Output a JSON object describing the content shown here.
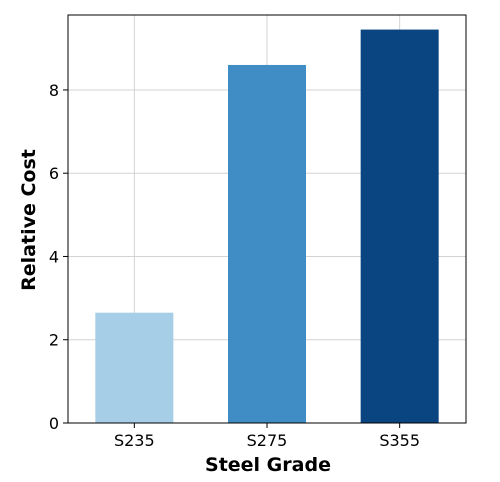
{
  "chart_data": {
    "type": "bar",
    "title": "",
    "xlabel": "Steel Grade",
    "ylabel": "Relative Cost",
    "categories": [
      "S235",
      "S275",
      "S355"
    ],
    "values": [
      2.65,
      8.6,
      9.45
    ],
    "colors": [
      "#a6cee6",
      "#3f8dc4",
      "#0a4582"
    ],
    "ylim": [
      0,
      9.8
    ],
    "yticks": [
      0,
      2,
      4,
      6,
      8
    ],
    "grid": true,
    "legend": "none"
  }
}
